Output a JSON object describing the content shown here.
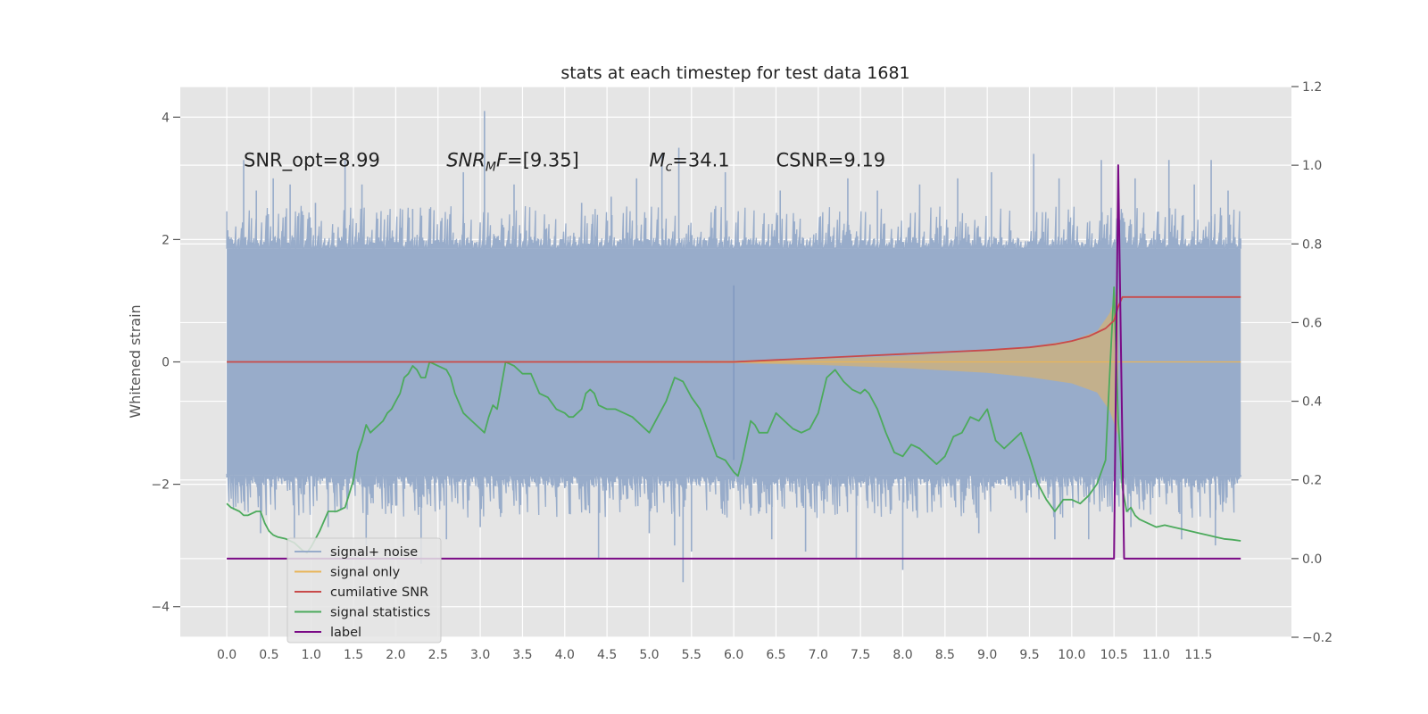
{
  "chart_data": {
    "type": "line",
    "title": "stats at each timestep for test data 1681",
    "ylabel": "Whitened strain",
    "xlim": [
      -0.55,
      12.6
    ],
    "ylim": [
      -4.5,
      4.5
    ],
    "y2lim": [
      -0.2,
      1.2
    ],
    "grid": true,
    "legend_position": "lower-left",
    "colors": {
      "background": "#e5e5e5",
      "grid": "#ffffff",
      "noise": "#98acca",
      "signal": "#e8b55a",
      "csnr": "#c84a4a",
      "stat": "#4caa5c",
      "label": "#7a0a86"
    },
    "x_ticks": [
      "0.0",
      "0.5",
      "1.0",
      "1.5",
      "2.0",
      "2.5",
      "3.0",
      "3.5",
      "4.0",
      "4.5",
      "5.0",
      "5.5",
      "6.0",
      "6.5",
      "7.0",
      "7.5",
      "8.0",
      "8.5",
      "9.0",
      "9.5",
      "10.0",
      "10.5",
      "11.0",
      "11.5"
    ],
    "y_ticks_left": [
      "4",
      "2",
      "0",
      "−2",
      "−4"
    ],
    "y_ticks_right": [
      "1.2",
      "1.0",
      "0.8",
      "0.6",
      "0.4",
      "0.2",
      "0.0",
      "−0.2"
    ],
    "annotations": [
      {
        "text": "SNR_opt=8.99",
        "x": 0.2,
        "y": 3.3
      },
      {
        "pre": "SNR",
        "sub": "M",
        "post": "F=[9.35]",
        "x": 2.6,
        "y": 3.3
      },
      {
        "pre": "M",
        "sub": "c",
        "post": "=34.1",
        "x": 5.0,
        "y": 3.3
      },
      {
        "text": "CSNR=9.19",
        "x": 6.5,
        "y": 3.3
      }
    ],
    "series": [
      {
        "name": "signal+ noise",
        "axis": "left",
        "band": {
          "lower": -1.85,
          "upper": 1.85
        },
        "spikes_up": [
          [
            0.2,
            3.3
          ],
          [
            0.35,
            2.8
          ],
          [
            0.55,
            3.0
          ],
          [
            0.75,
            2.9
          ],
          [
            1.05,
            2.6
          ],
          [
            1.4,
            3.3
          ],
          [
            1.6,
            2.9
          ],
          [
            2.2,
            2.5
          ],
          [
            2.8,
            3.1
          ],
          [
            3.05,
            4.1
          ],
          [
            3.4,
            2.9
          ],
          [
            4.2,
            2.6
          ],
          [
            4.55,
            2.7
          ],
          [
            4.85,
            3.0
          ],
          [
            5.15,
            3.4
          ],
          [
            5.35,
            3.5
          ],
          [
            5.9,
            3.1
          ],
          [
            6.55,
            2.8
          ],
          [
            7.35,
            3.0
          ],
          [
            7.7,
            2.8
          ],
          [
            8.2,
            2.9
          ],
          [
            8.65,
            3.0
          ],
          [
            9.05,
            3.1
          ],
          [
            9.55,
            3.4
          ],
          [
            9.85,
            3.0
          ],
          [
            10.35,
            3.3
          ],
          [
            10.55,
            3.0
          ],
          [
            10.75,
            3.0
          ],
          [
            11.15,
            3.3
          ],
          [
            11.45,
            2.9
          ],
          [
            11.65,
            3.3
          ],
          [
            11.85,
            2.8
          ]
        ],
        "spikes_down": [
          [
            0.4,
            -2.8
          ],
          [
            0.8,
            -2.9
          ],
          [
            1.2,
            -2.7
          ],
          [
            1.65,
            -3.0
          ],
          [
            2.3,
            -3.3
          ],
          [
            2.6,
            -2.9
          ],
          [
            3.0,
            -2.7
          ],
          [
            4.4,
            -3.2
          ],
          [
            5.0,
            -2.8
          ],
          [
            5.3,
            -3.0
          ],
          [
            5.4,
            -3.6
          ],
          [
            5.5,
            -3.1
          ],
          [
            6.45,
            -2.9
          ],
          [
            6.85,
            -3.1
          ],
          [
            7.45,
            -3.2
          ],
          [
            8.0,
            -3.4
          ],
          [
            8.9,
            -2.8
          ],
          [
            9.8,
            -2.9
          ],
          [
            10.2,
            -2.9
          ],
          [
            10.7,
            -2.7
          ],
          [
            11.3,
            -2.9
          ],
          [
            11.7,
            -3.0
          ]
        ]
      },
      {
        "name": "signal only",
        "axis": "left",
        "envelope": [
          [
            0.0,
            0.0
          ],
          [
            6.0,
            0.02
          ],
          [
            7.0,
            0.05
          ],
          [
            8.0,
            0.1
          ],
          [
            9.0,
            0.18
          ],
          [
            9.5,
            0.25
          ],
          [
            10.0,
            0.35
          ],
          [
            10.3,
            0.5
          ],
          [
            10.45,
            0.8
          ],
          [
            10.55,
            1.2
          ]
        ]
      },
      {
        "name": "cumilative SNR",
        "axis": "right",
        "x": [
          0.0,
          6.0,
          6.5,
          7.0,
          7.5,
          8.0,
          8.5,
          9.0,
          9.5,
          9.8,
          10.0,
          10.2,
          10.4,
          10.5,
          10.55,
          10.6,
          12.0
        ],
        "y": [
          0.5,
          0.5,
          0.505,
          0.51,
          0.515,
          0.52,
          0.525,
          0.53,
          0.537,
          0.545,
          0.553,
          0.565,
          0.585,
          0.605,
          0.64,
          0.665,
          0.665
        ]
      },
      {
        "name": "signal statistics",
        "axis": "right",
        "x": [
          0.0,
          0.05,
          0.15,
          0.2,
          0.25,
          0.35,
          0.4,
          0.45,
          0.5,
          0.55,
          0.6,
          0.7,
          0.8,
          0.9,
          0.95,
          1.0,
          1.1,
          1.2,
          1.3,
          1.4,
          1.5,
          1.55,
          1.6,
          1.65,
          1.7,
          1.8,
          1.85,
          1.9,
          1.95,
          2.0,
          2.05,
          2.1,
          2.15,
          2.2,
          2.25,
          2.3,
          2.35,
          2.4,
          2.5,
          2.6,
          2.65,
          2.7,
          2.8,
          2.9,
          3.0,
          3.05,
          3.1,
          3.15,
          3.2,
          3.3,
          3.4,
          3.5,
          3.6,
          3.7,
          3.8,
          3.9,
          4.0,
          4.05,
          4.1,
          4.2,
          4.25,
          4.3,
          4.35,
          4.4,
          4.5,
          4.6,
          4.7,
          4.8,
          4.9,
          5.0,
          5.1,
          5.2,
          5.3,
          5.4,
          5.5,
          5.6,
          5.7,
          5.8,
          5.9,
          6.0,
          6.05,
          6.1,
          6.2,
          6.25,
          6.3,
          6.4,
          6.5,
          6.6,
          6.7,
          6.8,
          6.9,
          7.0,
          7.1,
          7.2,
          7.3,
          7.4,
          7.5,
          7.55,
          7.6,
          7.7,
          7.8,
          7.9,
          8.0,
          8.1,
          8.2,
          8.3,
          8.4,
          8.5,
          8.6,
          8.7,
          8.8,
          8.9,
          9.0,
          9.1,
          9.2,
          9.3,
          9.4,
          9.5,
          9.6,
          9.7,
          9.8,
          9.9,
          10.0,
          10.1,
          10.2,
          10.3,
          10.4,
          10.45,
          10.5,
          10.55,
          10.6,
          10.65,
          10.7,
          10.75,
          10.8,
          10.9,
          11.0,
          11.1,
          11.2,
          11.3,
          11.4,
          11.5,
          11.6,
          11.7,
          11.8,
          11.9,
          12.0
        ],
        "y": [
          0.14,
          0.13,
          0.12,
          0.11,
          0.11,
          0.12,
          0.12,
          0.09,
          0.07,
          0.06,
          0.055,
          0.05,
          0.04,
          0.02,
          0.015,
          0.03,
          0.07,
          0.12,
          0.12,
          0.13,
          0.2,
          0.27,
          0.3,
          0.34,
          0.32,
          0.34,
          0.35,
          0.37,
          0.38,
          0.4,
          0.42,
          0.46,
          0.47,
          0.49,
          0.48,
          0.46,
          0.46,
          0.5,
          0.49,
          0.48,
          0.46,
          0.42,
          0.37,
          0.35,
          0.33,
          0.32,
          0.36,
          0.39,
          0.38,
          0.5,
          0.49,
          0.47,
          0.47,
          0.42,
          0.41,
          0.38,
          0.37,
          0.36,
          0.36,
          0.38,
          0.42,
          0.43,
          0.42,
          0.39,
          0.38,
          0.38,
          0.37,
          0.36,
          0.34,
          0.32,
          0.36,
          0.4,
          0.46,
          0.45,
          0.41,
          0.38,
          0.32,
          0.26,
          0.25,
          0.22,
          0.21,
          0.25,
          0.35,
          0.34,
          0.32,
          0.32,
          0.37,
          0.35,
          0.33,
          0.32,
          0.33,
          0.37,
          0.46,
          0.48,
          0.45,
          0.43,
          0.42,
          0.43,
          0.42,
          0.38,
          0.32,
          0.27,
          0.26,
          0.29,
          0.28,
          0.26,
          0.24,
          0.26,
          0.31,
          0.32,
          0.36,
          0.35,
          0.38,
          0.3,
          0.28,
          0.3,
          0.32,
          0.26,
          0.19,
          0.15,
          0.12,
          0.15,
          0.15,
          0.14,
          0.16,
          0.19,
          0.25,
          0.47,
          0.69,
          0.35,
          0.18,
          0.12,
          0.13,
          0.11,
          0.1,
          0.09,
          0.08,
          0.085,
          0.08,
          0.075,
          0.07,
          0.065,
          0.06,
          0.055,
          0.05,
          0.048,
          0.045
        ]
      },
      {
        "name": "label",
        "axis": "right",
        "x": [
          0.0,
          10.5,
          10.55,
          10.62,
          10.65,
          12.0
        ],
        "y": [
          0.0,
          0.0,
          1.0,
          0.0,
          0.0,
          0.0
        ]
      }
    ]
  }
}
